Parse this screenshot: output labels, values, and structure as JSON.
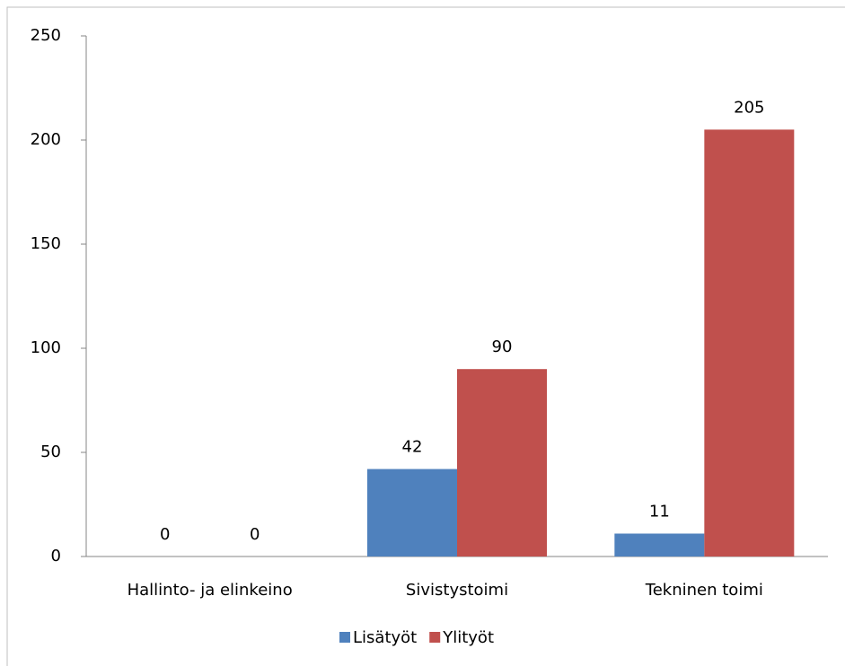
{
  "chart_data": {
    "type": "bar",
    "categories": [
      "Hallinto- ja elinkeino",
      "Sivistystoimi",
      "Tekninen toimi"
    ],
    "series": [
      {
        "name": "Lisätyöt",
        "color": "#4f81bd",
        "values": [
          0,
          42,
          11
        ]
      },
      {
        "name": "Ylityöt",
        "color": "#c0504d",
        "values": [
          0,
          90,
          205
        ]
      }
    ],
    "ylim": [
      0,
      250
    ],
    "yticks": [
      0,
      50,
      100,
      150,
      200,
      250
    ],
    "grid": false,
    "legend": "bottom",
    "data_labels": true
  }
}
